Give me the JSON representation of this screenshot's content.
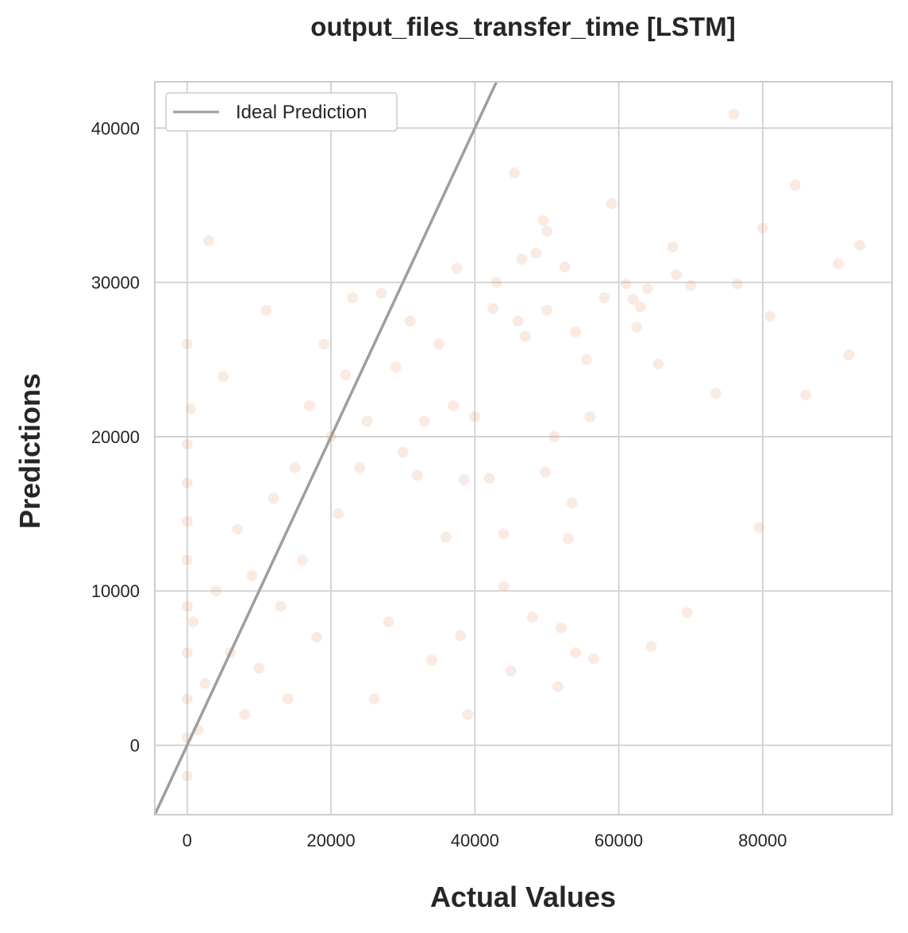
{
  "chart_data": {
    "type": "scatter",
    "title": "output_files_transfer_time [LSTM]",
    "xlabel": "Actual Values",
    "ylabel": "Predictions",
    "xlim": [
      -4500,
      98000
    ],
    "ylim": [
      -4500,
      43000
    ],
    "xticks": [
      0,
      20000,
      40000,
      60000,
      80000
    ],
    "xtick_labels": [
      "0",
      "20000",
      "40000",
      "60000",
      "80000"
    ],
    "yticks": [
      0,
      10000,
      20000,
      30000,
      40000
    ],
    "ytick_labels": [
      "0",
      "10000",
      "20000",
      "30000",
      "40000"
    ],
    "grid": true,
    "legend_position": "top-left",
    "colors": {
      "points": "#e08a5c",
      "ideal_line": "#9e9e9e",
      "grid": "#d0d0d0",
      "frame": "#cccccc"
    },
    "series": [
      {
        "name": "Ideal Prediction",
        "kind": "line",
        "points": [
          [
            -4500,
            -4500
          ],
          [
            43000,
            43000
          ]
        ]
      },
      {
        "kind": "scatter",
        "points": [
          [
            0,
            -2000
          ],
          [
            0,
            500
          ],
          [
            0,
            3000
          ],
          [
            0,
            6000
          ],
          [
            0,
            9000
          ],
          [
            0,
            12000
          ],
          [
            0,
            14500
          ],
          [
            0,
            17000
          ],
          [
            0,
            19500
          ],
          [
            0,
            26000
          ],
          [
            500,
            21800
          ],
          [
            800,
            8000
          ],
          [
            1500,
            1000
          ],
          [
            2500,
            4000
          ],
          [
            3000,
            32700
          ],
          [
            4000,
            10000
          ],
          [
            5000,
            23900
          ],
          [
            6000,
            6000
          ],
          [
            7000,
            14000
          ],
          [
            8000,
            2000
          ],
          [
            9000,
            11000
          ],
          [
            10000,
            5000
          ],
          [
            11000,
            28200
          ],
          [
            12000,
            16000
          ],
          [
            13000,
            9000
          ],
          [
            14000,
            3000
          ],
          [
            15000,
            18000
          ],
          [
            16000,
            12000
          ],
          [
            17000,
            22000
          ],
          [
            18000,
            7000
          ],
          [
            19000,
            26000
          ],
          [
            20000,
            20000
          ],
          [
            21000,
            15000
          ],
          [
            22000,
            24000
          ],
          [
            23000,
            29000
          ],
          [
            24000,
            18000
          ],
          [
            25000,
            21000
          ],
          [
            26000,
            3000
          ],
          [
            27000,
            29300
          ],
          [
            28000,
            8000
          ],
          [
            29000,
            24500
          ],
          [
            30000,
            19000
          ],
          [
            31000,
            27500
          ],
          [
            32000,
            17500
          ],
          [
            33000,
            21000
          ],
          [
            34000,
            5500
          ],
          [
            35000,
            26000
          ],
          [
            36000,
            13500
          ],
          [
            37000,
            22000
          ],
          [
            37500,
            30900
          ],
          [
            38000,
            7100
          ],
          [
            38500,
            17200
          ],
          [
            39000,
            2000
          ],
          [
            40000,
            21300
          ],
          [
            42000,
            17300
          ],
          [
            42500,
            28300
          ],
          [
            43000,
            30000
          ],
          [
            44000,
            13700
          ],
          [
            44000,
            10300
          ],
          [
            45000,
            4800
          ],
          [
            45500,
            37100
          ],
          [
            46000,
            27500
          ],
          [
            46500,
            31500
          ],
          [
            47000,
            26500
          ],
          [
            48000,
            8300
          ],
          [
            48500,
            31900
          ],
          [
            49500,
            34000
          ],
          [
            49800,
            17700
          ],
          [
            50000,
            28200
          ],
          [
            50000,
            33300
          ],
          [
            51000,
            20000
          ],
          [
            51500,
            3800
          ],
          [
            52000,
            7600
          ],
          [
            52500,
            31000
          ],
          [
            53000,
            13400
          ],
          [
            53500,
            15700
          ],
          [
            54000,
            26800
          ],
          [
            54000,
            6000
          ],
          [
            55500,
            25000
          ],
          [
            56000,
            21300
          ],
          [
            56500,
            5600
          ],
          [
            58000,
            29000
          ],
          [
            59000,
            35100
          ],
          [
            61000,
            29900
          ],
          [
            62000,
            28900
          ],
          [
            62500,
            27100
          ],
          [
            63000,
            28400
          ],
          [
            64000,
            29600
          ],
          [
            64500,
            6400
          ],
          [
            65500,
            24700
          ],
          [
            67500,
            32300
          ],
          [
            68000,
            30500
          ],
          [
            69500,
            8600
          ],
          [
            70000,
            29800
          ],
          [
            73500,
            22800
          ],
          [
            76000,
            40900
          ],
          [
            76500,
            29900
          ],
          [
            79500,
            14100
          ],
          [
            80000,
            33500
          ],
          [
            81000,
            27800
          ],
          [
            84500,
            36300
          ],
          [
            86000,
            22700
          ],
          [
            90500,
            31200
          ],
          [
            92000,
            25300
          ],
          [
            93500,
            32400
          ]
        ]
      }
    ]
  }
}
